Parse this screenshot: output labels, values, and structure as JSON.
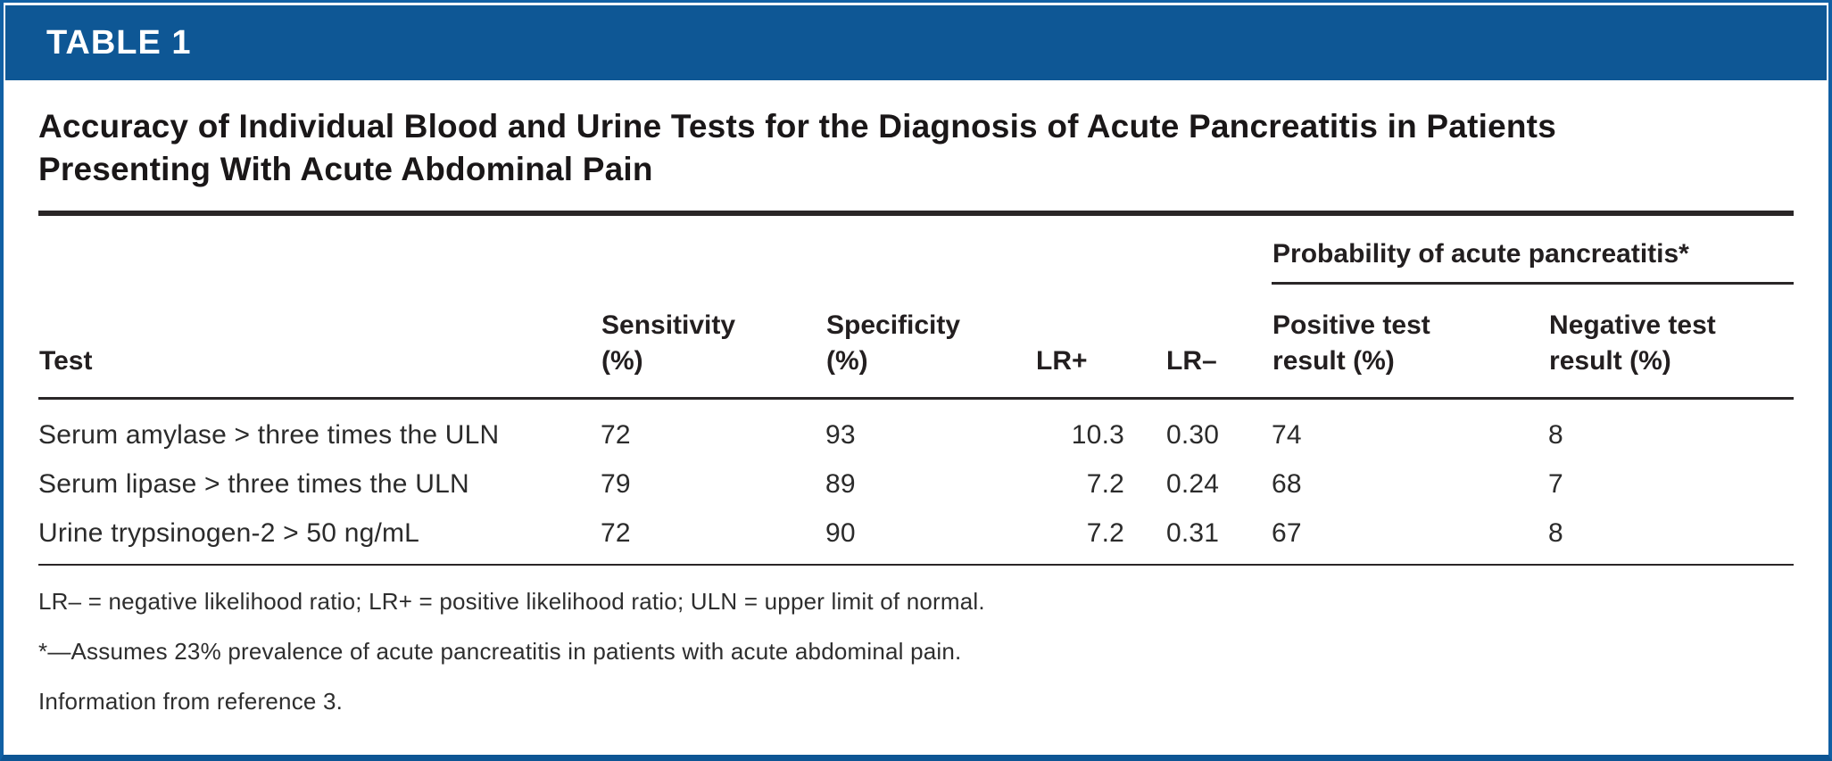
{
  "colors": {
    "accent_blue": "#0e5795",
    "border_blue": "#1160a4",
    "rule_black": "#2a2627",
    "text_dark": "#231f20"
  },
  "banner": {
    "label": "TABLE 1"
  },
  "title": {
    "line1": "Accuracy of Individual Blood and Urine Tests for the Diagnosis of Acute Pancreatitis in Patients",
    "line2": "Presenting With Acute Abdominal Pain"
  },
  "table": {
    "group_header": "Probability of acute pancreatitis*",
    "columns": [
      {
        "line1": "Test",
        "line2": ""
      },
      {
        "line1": "Sensitivity",
        "line2": "(%)"
      },
      {
        "line1": "Specificity",
        "line2": "(%)"
      },
      {
        "line1": "LR+",
        "line2": ""
      },
      {
        "line1": "LR–",
        "line2": ""
      },
      {
        "line1": "Positive test",
        "line2": "result (%)"
      },
      {
        "line1": "Negative test",
        "line2": "result (%)"
      }
    ],
    "rows": [
      {
        "test": "Serum amylase > three times the ULN",
        "sensitivity": "72",
        "specificity": "93",
        "lr_plus": "10.3",
        "lr_minus": "0.30",
        "positive": "74",
        "negative": "8"
      },
      {
        "test": "Serum lipase > three times the ULN",
        "sensitivity": "79",
        "specificity": "89",
        "lr_plus": "7.2",
        "lr_minus": "0.24",
        "positive": "68",
        "negative": "7"
      },
      {
        "test": "Urine trypsinogen-2 > 50 ng/mL",
        "sensitivity": "72",
        "specificity": "90",
        "lr_plus": "7.2",
        "lr_minus": "0.31",
        "positive": "67",
        "negative": "8"
      }
    ]
  },
  "footnotes": [
    "LR– = negative likelihood ratio; LR+ = positive likelihood ratio; ULN = upper limit of normal.",
    "*—Assumes 23% prevalence of acute pancreatitis in patients with acute abdominal pain.",
    "Information from reference 3."
  ],
  "chart_data": {
    "type": "table",
    "title": "Accuracy of Individual Blood and Urine Tests for the Diagnosis of Acute Pancreatitis in Patients Presenting With Acute Abdominal Pain",
    "columns": [
      "Test",
      "Sensitivity (%)",
      "Specificity (%)",
      "LR+",
      "LR–",
      "Positive test result (%)",
      "Negative test result (%)"
    ],
    "column_group": {
      "label": "Probability of acute pancreatitis*",
      "spans": [
        "Positive test result (%)",
        "Negative test result (%)"
      ]
    },
    "rows": [
      [
        "Serum amylase > three times the ULN",
        72,
        93,
        10.3,
        0.3,
        74,
        8
      ],
      [
        "Serum lipase > three times the ULN",
        79,
        89,
        7.2,
        0.24,
        68,
        7
      ],
      [
        "Urine trypsinogen-2 > 50 ng/mL",
        72,
        90,
        7.2,
        0.31,
        67,
        8
      ]
    ]
  }
}
